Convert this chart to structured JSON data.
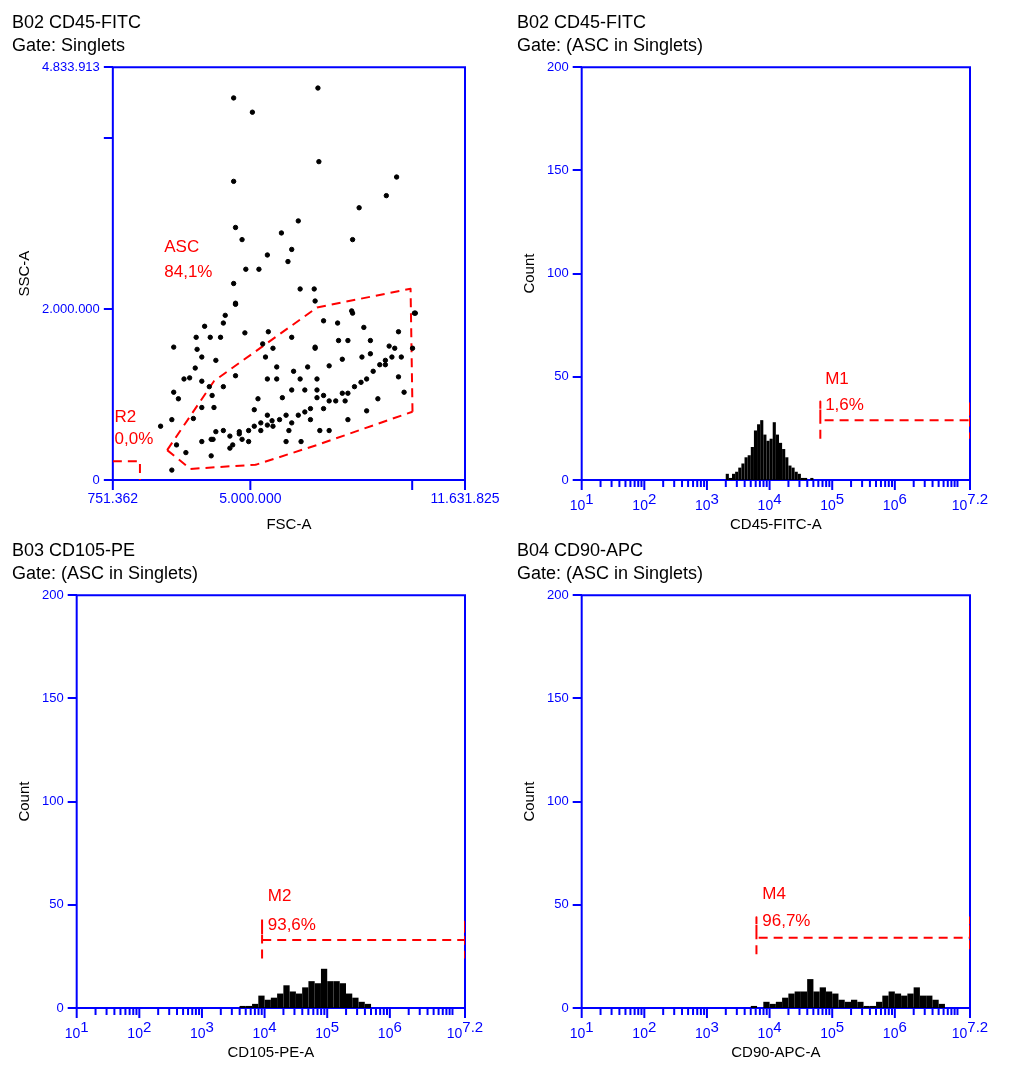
{
  "chart_data": [
    {
      "type": "scatter",
      "title": "B02 CD45-FITC",
      "subtitle": "Gate: Singlets",
      "xlabel": "FSC-A",
      "ylabel": "SSC-A",
      "xlim": [
        751362,
        11631825
      ],
      "ylim": [
        0,
        4833913
      ],
      "xticks": [
        {
          "value": 751362,
          "label": "751.362"
        },
        {
          "value": 5000000,
          "label": "5.000.000"
        },
        {
          "value": 10000000,
          "label": null
        },
        {
          "value": 11631825,
          "label": "11.631.825"
        }
      ],
      "yticks": [
        0,
        {
          "value": 2000000,
          "label": "2.000.000"
        },
        {
          "value": 4000000,
          "label": null
        },
        {
          "value": 4833913,
          "label": "4.833.913"
        }
      ],
      "series": [
        {
          "color": "#000000",
          "marker": "circle",
          "x": [
            4484000,
            7088000,
            5063000,
            7117000,
            4484000,
            9519000,
            9201000,
            8361000,
            6481000,
            8159000,
            5960000,
            4542000,
            4744000,
            6278000,
            5526000,
            6162000,
            5265000,
            4860000,
            4484000,
            6538000,
            4542000,
            7001000,
            7262000,
            7696000,
            8159000,
            10069000,
            4224000,
            3587000,
            2632000,
            7001000,
            4166000,
            4542000,
            3326000,
            3761000,
            4079000,
            3355000,
            3500000,
            3934000,
            3297000,
            2950000,
            3124000,
            3500000,
            3732000,
            4166000,
            3819000,
            2632000,
            2777000,
            3500000,
            3876000,
            3240000,
            2227000,
            2574000,
            2719000,
            2574000,
            3008000,
            3500000,
            3790000,
            3847000,
            4368000,
            4658000,
            4947000,
            5121000,
            5236000,
            5526000,
            5815000,
            5555000,
            4831000,
            4542000,
            5381000,
            6278000,
            5699000,
            5468000,
            5815000,
            6336000,
            6770000,
            7059000,
            6538000,
            6278000,
            5989000,
            6683000,
            7059000,
            7435000,
            7725000,
            8014000,
            7841000,
            8448000,
            8709000,
            8709000,
            8506000,
            8130000,
            9577000,
            9288000,
            9461000,
            9664000,
            9172000,
            9577000,
            9750000,
            8940000,
            8593000,
            8014000,
            7435000,
            7146000,
            6567000,
            6104000,
            6973000,
            7001000,
            10011000,
            10098000,
            3790000,
            3934000,
            4166000,
            4368000,
            4658000,
            4947000,
            5121000,
            5323000,
            5526000,
            5699000,
            5902000,
            6104000,
            6278000,
            6481000,
            6683000,
            6857000,
            7059000,
            7262000,
            7435000,
            7638000,
            7841000,
            8014000,
            8217000,
            8419000,
            8593000,
            8795000,
            8998000,
            9172000,
            9374000,
            4455000,
            4744000,
            5323000,
            5670000,
            6191000,
            6857000,
            7262000,
            7928000,
            5526000
          ],
          "values": [
            4474000,
            4590000,
            4307000,
            3728000,
            3497000,
            3548000,
            3330000,
            3188000,
            3034000,
            2815000,
            2893000,
            2957000,
            2815000,
            2700000,
            2635000,
            2558000,
            2468000,
            2468000,
            2301000,
            2237000,
            2070000,
            2096000,
            1864000,
            1838000,
            1954000,
            1954000,
            1928000,
            1800000,
            1556000,
            1556000,
            1838000,
            2057000,
            1671000,
            1671000,
            1671000,
            1530000,
            1440000,
            1401000,
            1311000,
            1183000,
            1196000,
            1157000,
            1093000,
            1093000,
            990000,
            1028000,
            951000,
            849000,
            849000,
            720000,
            630000,
            707000,
            411000,
            116000,
            321000,
            450000,
            283000,
            476000,
            373000,
            566000,
            450000,
            823000,
            951000,
            1183000,
            1183000,
            1736000,
            1723000,
            1221000,
            1594000,
            1671000,
            1543000,
            1440000,
            1324000,
            1273000,
            1324000,
            1183000,
            1183000,
            1054000,
            964000,
            1054000,
            1054000,
            1337000,
            1633000,
            1633000,
            1414000,
            1440000,
            1478000,
            1633000,
            1787000,
            1980000,
            1736000,
            1568000,
            1543000,
            1440000,
            1350000,
            1208000,
            1028000,
            951000,
            810000,
            707000,
            579000,
            579000,
            450000,
            450000,
            2237000,
            1543000,
            1543000,
            1954000,
            476000,
            566000,
            579000,
            514000,
            540000,
            579000,
            630000,
            669000,
            643000,
            630000,
            707000,
            759000,
            669000,
            759000,
            797000,
            836000,
            964000,
            990000,
            926000,
            926000,
            1016000,
            1016000,
            1093000,
            1144000,
            1183000,
            1273000,
            1350000,
            1401000,
            1440000,
            411000,
            476000,
            579000,
            694000,
            579000,
            707000,
            836000,
            926000,
            759000
          ]
        },
        {
          "type": "line",
          "color": "#ff0000",
          "line_style": "dashed",
          "marker": "none",
          "x": [
            2430000,
            3880000,
            7060000,
            9950000,
            10010000
          ],
          "values": [
            350000,
            1160000,
            2020000,
            2240000,
            800000
          ]
        },
        {
          "type": "line",
          "color": "#ff0000",
          "line_style": "dashed",
          "marker": "none",
          "x": [
            2430000,
            3150000,
            5180000,
            7060000,
            10010000
          ],
          "values": [
            350000,
            130000,
            180000,
            410000,
            800000
          ]
        },
        {
          "type": "line",
          "color": "#ff0000",
          "line_style": "dashed",
          "marker": "none",
          "x": [
            751362,
            1589000,
            1589000
          ],
          "values": [
            220000,
            220000,
            0
          ]
        }
      ],
      "annotations": [
        "ASC",
        "84,1%",
        "R2",
        "0,0%"
      ]
    },
    {
      "type": "histogram",
      "title": "B02 CD45-FITC",
      "subtitle": "Gate: (ASC in Singlets)",
      "xlabel": "CD45-FITC-A",
      "ylabel": "Count",
      "log": "x",
      "xlim": [
        10,
        15848932
      ],
      "ylim": [
        0,
        200
      ],
      "xticks": [
        {
          "value": 10,
          "label": "10$^{1}$"
        },
        {
          "value": 20,
          "label": null
        },
        {
          "value": 30,
          "label": null
        },
        {
          "value": 40,
          "label": null
        },
        {
          "value": 50,
          "label": null
        },
        {
          "value": 60,
          "label": null
        },
        {
          "value": 70,
          "label": null
        },
        {
          "value": 80,
          "label": null
        },
        {
          "value": 90,
          "label": null
        },
        {
          "value": 100,
          "label": "10$^{2}$"
        },
        {
          "value": 200,
          "label": null
        },
        {
          "value": 300,
          "label": null
        },
        {
          "value": 400,
          "label": null
        },
        {
          "value": 500,
          "label": null
        },
        {
          "value": 600,
          "label": null
        },
        {
          "value": 700,
          "label": null
        },
        {
          "value": 800,
          "label": null
        },
        {
          "value": 900,
          "label": null
        },
        {
          "value": 1000,
          "label": "10$^{3}$"
        },
        {
          "value": 2000,
          "label": null
        },
        {
          "value": 3000,
          "label": null
        },
        {
          "value": 4000,
          "label": null
        },
        {
          "value": 5000,
          "label": null
        },
        {
          "value": 6000,
          "label": null
        },
        {
          "value": 7000,
          "label": null
        },
        {
          "value": 8000,
          "label": null
        },
        {
          "value": 9000,
          "label": null
        },
        {
          "value": 10000,
          "label": "10$^{4}$"
        },
        {
          "value": 20000,
          "label": null
        },
        {
          "value": 30000,
          "label": null
        },
        {
          "value": 40000,
          "label": null
        },
        {
          "value": 50000,
          "label": null
        },
        {
          "value": 60000,
          "label": null
        },
        {
          "value": 70000,
          "label": null
        },
        {
          "value": 80000,
          "label": null
        },
        {
          "value": 90000,
          "label": null
        },
        {
          "value": 100000,
          "label": "10$^{5}$"
        },
        {
          "value": 200000,
          "label": null
        },
        {
          "value": 300000,
          "label": null
        },
        {
          "value": 400000,
          "label": null
        },
        {
          "value": 500000,
          "label": null
        },
        {
          "value": 600000,
          "label": null
        },
        {
          "value": 700000,
          "label": null
        },
        {
          "value": 800000,
          "label": null
        },
        {
          "value": 900000,
          "label": null
        },
        {
          "value": 1000000,
          "label": "10$^{6}$"
        },
        {
          "value": 2000000,
          "label": null
        },
        {
          "value": 3000000,
          "label": null
        },
        {
          "value": 4000000,
          "label": null
        },
        {
          "value": 5000000,
          "label": null
        },
        {
          "value": 6000000,
          "label": null
        },
        {
          "value": 7000000,
          "label": null
        },
        {
          "value": 8000000,
          "label": null
        },
        {
          "value": 9000000,
          "label": null
        },
        {
          "value": 10000000,
          "label": null
        },
        {
          "value": 15848932,
          "label": "10$^{7.2}$"
        }
      ],
      "yticks": [
        0,
        50,
        100,
        150,
        200
      ],
      "color": "#000000",
      "bins": [
        1995,
        2239,
        2512,
        2818,
        3162,
        3548,
        3981,
        4467,
        5012,
        5623,
        6310,
        7079,
        7943,
        8913,
        10000,
        11220,
        12589,
        14125,
        15849,
        17783,
        19953,
        22387,
        25119,
        28184,
        31623,
        35481,
        39811,
        44668,
        50119
      ],
      "values": [
        3,
        1,
        3,
        4,
        6,
        8,
        11,
        12,
        16,
        24,
        27,
        29,
        22,
        19,
        20,
        28,
        22,
        18,
        15,
        11,
        7,
        6,
        4,
        3,
        1,
        1,
        0,
        1
      ],
      "series": [
        {
          "type": "line",
          "color": "#ff0000",
          "line_style": "dashed",
          "marker": "none",
          "x": [
            64600,
            64600,
            64600,
            15848932,
            15848932,
            15848932
          ],
          "values": [
            20,
            38,
            29,
            29,
            38,
            20
          ]
        }
      ],
      "annotations": [
        "M1",
        "1,6%"
      ]
    },
    {
      "type": "histogram",
      "title": "B03 CD105-PE",
      "subtitle": "Gate: (ASC in Singlets)",
      "xlabel": "CD105-PE-A",
      "ylabel": "Count",
      "log": "x",
      "xlim": [
        10,
        15848932
      ],
      "ylim": [
        0,
        200
      ],
      "xticks": [
        {
          "value": 10,
          "label": "10$^{1}$"
        },
        {
          "value": 20,
          "label": null
        },
        {
          "value": 30,
          "label": null
        },
        {
          "value": 40,
          "label": null
        },
        {
          "value": 50,
          "label": null
        },
        {
          "value": 60,
          "label": null
        },
        {
          "value": 70,
          "label": null
        },
        {
          "value": 80,
          "label": null
        },
        {
          "value": 90,
          "label": null
        },
        {
          "value": 100,
          "label": "10$^{2}$"
        },
        {
          "value": 200,
          "label": null
        },
        {
          "value": 300,
          "label": null
        },
        {
          "value": 400,
          "label": null
        },
        {
          "value": 500,
          "label": null
        },
        {
          "value": 600,
          "label": null
        },
        {
          "value": 700,
          "label": null
        },
        {
          "value": 800,
          "label": null
        },
        {
          "value": 900,
          "label": null
        },
        {
          "value": 1000,
          "label": "10$^{3}$"
        },
        {
          "value": 2000,
          "label": null
        },
        {
          "value": 3000,
          "label": null
        },
        {
          "value": 4000,
          "label": null
        },
        {
          "value": 5000,
          "label": null
        },
        {
          "value": 6000,
          "label": null
        },
        {
          "value": 7000,
          "label": null
        },
        {
          "value": 8000,
          "label": null
        },
        {
          "value": 9000,
          "label": null
        },
        {
          "value": 10000,
          "label": "10$^{4}$"
        },
        {
          "value": 20000,
          "label": null
        },
        {
          "value": 30000,
          "label": null
        },
        {
          "value": 40000,
          "label": null
        },
        {
          "value": 50000,
          "label": null
        },
        {
          "value": 60000,
          "label": null
        },
        {
          "value": 70000,
          "label": null
        },
        {
          "value": 80000,
          "label": null
        },
        {
          "value": 90000,
          "label": null
        },
        {
          "value": 100000,
          "label": "10$^{5}$"
        },
        {
          "value": 200000,
          "label": null
        },
        {
          "value": 300000,
          "label": null
        },
        {
          "value": 400000,
          "label": null
        },
        {
          "value": 500000,
          "label": null
        },
        {
          "value": 600000,
          "label": null
        },
        {
          "value": 700000,
          "label": null
        },
        {
          "value": 800000,
          "label": null
        },
        {
          "value": 900000,
          "label": null
        },
        {
          "value": 1000000,
          "label": "10$^{6}$"
        },
        {
          "value": 2000000,
          "label": null
        },
        {
          "value": 3000000,
          "label": null
        },
        {
          "value": 4000000,
          "label": null
        },
        {
          "value": 5000000,
          "label": null
        },
        {
          "value": 6000000,
          "label": null
        },
        {
          "value": 7000000,
          "label": null
        },
        {
          "value": 8000000,
          "label": null
        },
        {
          "value": 9000000,
          "label": null
        },
        {
          "value": 10000000,
          "label": null
        },
        {
          "value": 15848932,
          "label": "10$^{7.2}$"
        }
      ],
      "yticks": [
        0,
        50,
        100,
        150,
        200
      ],
      "color": "#000000",
      "bins": [
        3981,
        5012,
        6310,
        7943,
        10000,
        12589,
        15849,
        19953,
        25119,
        31623,
        39811,
        50119,
        63096,
        79433,
        100000,
        125893,
        158489,
        199526,
        251189,
        316228,
        398107,
        501187
      ],
      "values": [
        1,
        1,
        2,
        6,
        4,
        5,
        7,
        11,
        8,
        7,
        10,
        13,
        12,
        19,
        13,
        13,
        12,
        7,
        5,
        3,
        2
      ],
      "series": [
        {
          "type": "line",
          "color": "#ff0000",
          "line_style": "dashed",
          "marker": "none",
          "x": [
            9120,
            9120,
            9120,
            15848932,
            15848932,
            15848932
          ],
          "values": [
            24,
            43,
            33,
            33,
            43,
            24
          ]
        }
      ],
      "annotations": [
        "M2",
        "93,6%"
      ]
    },
    {
      "type": "histogram",
      "title": "B04 CD90-APC",
      "subtitle": "Gate: (ASC in Singlets)",
      "xlabel": "CD90-APC-A",
      "ylabel": "Count",
      "log": "x",
      "xlim": [
        10,
        15848932
      ],
      "ylim": [
        0,
        200
      ],
      "xticks": [
        {
          "value": 10,
          "label": "10$^{1}$"
        },
        {
          "value": 20,
          "label": null
        },
        {
          "value": 30,
          "label": null
        },
        {
          "value": 40,
          "label": null
        },
        {
          "value": 50,
          "label": null
        },
        {
          "value": 60,
          "label": null
        },
        {
          "value": 70,
          "label": null
        },
        {
          "value": 80,
          "label": null
        },
        {
          "value": 90,
          "label": null
        },
        {
          "value": 100,
          "label": "10$^{2}$"
        },
        {
          "value": 200,
          "label": null
        },
        {
          "value": 300,
          "label": null
        },
        {
          "value": 400,
          "label": null
        },
        {
          "value": 500,
          "label": null
        },
        {
          "value": 600,
          "label": null
        },
        {
          "value": 700,
          "label": null
        },
        {
          "value": 800,
          "label": null
        },
        {
          "value": 900,
          "label": null
        },
        {
          "value": 1000,
          "label": "10$^{3}$"
        },
        {
          "value": 2000,
          "label": null
        },
        {
          "value": 3000,
          "label": null
        },
        {
          "value": 4000,
          "label": null
        },
        {
          "value": 5000,
          "label": null
        },
        {
          "value": 6000,
          "label": null
        },
        {
          "value": 7000,
          "label": null
        },
        {
          "value": 8000,
          "label": null
        },
        {
          "value": 9000,
          "label": null
        },
        {
          "value": 10000,
          "label": "10$^{4}$"
        },
        {
          "value": 20000,
          "label": null
        },
        {
          "value": 30000,
          "label": null
        },
        {
          "value": 40000,
          "label": null
        },
        {
          "value": 50000,
          "label": null
        },
        {
          "value": 60000,
          "label": null
        },
        {
          "value": 70000,
          "label": null
        },
        {
          "value": 80000,
          "label": null
        },
        {
          "value": 90000,
          "label": null
        },
        {
          "value": 100000,
          "label": "10$^{5}$"
        },
        {
          "value": 200000,
          "label": null
        },
        {
          "value": 300000,
          "label": null
        },
        {
          "value": 400000,
          "label": null
        },
        {
          "value": 500000,
          "label": null
        },
        {
          "value": 600000,
          "label": null
        },
        {
          "value": 700000,
          "label": null
        },
        {
          "value": 800000,
          "label": null
        },
        {
          "value": 900000,
          "label": null
        },
        {
          "value": 1000000,
          "label": "10$^{6}$"
        },
        {
          "value": 2000000,
          "label": null
        },
        {
          "value": 3000000,
          "label": null
        },
        {
          "value": 4000000,
          "label": null
        },
        {
          "value": 5000000,
          "label": null
        },
        {
          "value": 6000000,
          "label": null
        },
        {
          "value": 7000000,
          "label": null
        },
        {
          "value": 8000000,
          "label": null
        },
        {
          "value": 9000000,
          "label": null
        },
        {
          "value": 10000000,
          "label": null
        },
        {
          "value": 15848932,
          "label": "10$^{7.2}$"
        }
      ],
      "yticks": [
        0,
        50,
        100,
        150,
        200
      ],
      "color": "#000000",
      "bins": [
        5012,
        6310,
        7943,
        10000,
        12589,
        15849,
        19953,
        25119,
        31623,
        39811,
        50119,
        63096,
        79433,
        100000,
        125893,
        158489,
        199526,
        251189,
        316228,
        398107,
        501187,
        630957,
        794328,
        1000000,
        1258925,
        1584893,
        1995262,
        2511886,
        3162278,
        3981072,
        5011872,
        6309573
      ],
      "values": [
        1,
        0,
        3,
        2,
        3,
        5,
        7,
        8,
        8,
        14,
        8,
        10,
        8,
        7,
        4,
        3,
        4,
        3,
        1,
        1,
        3,
        6,
        8,
        7,
        6,
        7,
        10,
        6,
        6,
        4,
        2
      ],
      "series": [
        {
          "type": "line",
          "color": "#ff0000",
          "line_style": "dashed",
          "marker": "none",
          "x": [
            6170,
            6170,
            6170,
            15848932,
            15848932,
            15848932
          ],
          "values": [
            26,
            44,
            34,
            34,
            44,
            26
          ]
        }
      ],
      "annotations": [
        "M4",
        "96,7%"
      ]
    }
  ]
}
